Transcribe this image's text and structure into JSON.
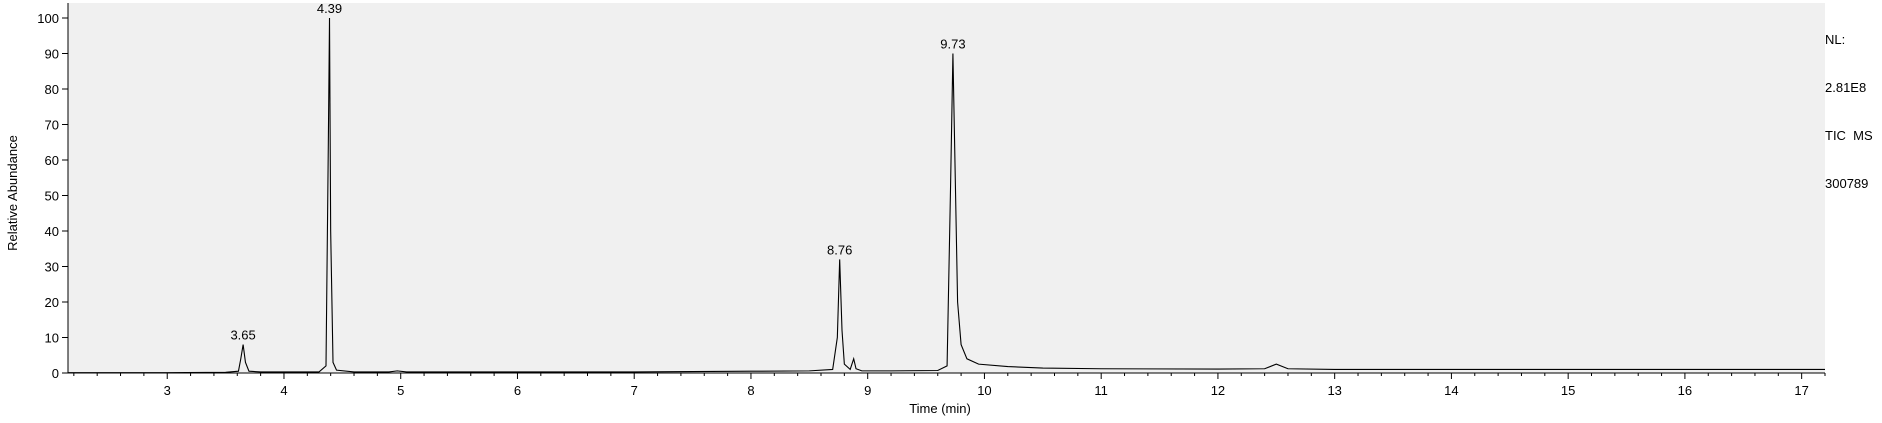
{
  "chart_data": {
    "type": "line",
    "title": "",
    "xlabel": "Time (min)",
    "ylabel": "Relative Abundance",
    "xlim": [
      2.15,
      17.2
    ],
    "ylim": [
      0,
      100
    ],
    "x_ticks": [
      3,
      4,
      5,
      6,
      7,
      8,
      9,
      10,
      11,
      12,
      13,
      14,
      15,
      16,
      17
    ],
    "y_ticks": [
      0,
      10,
      20,
      30,
      40,
      50,
      60,
      70,
      80,
      90,
      100
    ],
    "grid": false,
    "legend": "none",
    "colors": {
      "trace": "#000000",
      "plot_background": "#f0f0f0",
      "axis": "#000000"
    },
    "info_block": [
      "NL:",
      "2.81E8",
      "TIC  MS",
      "300789"
    ],
    "series": [
      {
        "x": [
          2.15,
          3.0,
          3.5,
          3.61,
          3.63,
          3.65,
          3.67,
          3.7,
          3.8,
          4.0,
          4.3,
          4.36,
          4.38,
          4.39,
          4.4,
          4.42,
          4.45,
          4.6,
          4.9,
          4.97,
          5.05,
          5.5,
          6.0,
          6.5,
          7.0,
          7.5,
          8.0,
          8.5,
          8.7,
          8.74,
          8.76,
          8.78,
          8.8,
          8.85,
          8.88,
          8.9,
          8.95,
          9.2,
          9.6,
          9.68,
          9.71,
          9.73,
          9.75,
          9.77,
          9.8,
          9.85,
          9.95,
          10.2,
          10.5,
          11.0,
          12.0,
          12.4,
          12.5,
          12.6,
          13.0,
          14.0,
          15.0,
          16.0,
          17.2
        ],
        "y": [
          0.1,
          0.1,
          0.2,
          0.5,
          4.0,
          8.0,
          3.0,
          0.5,
          0.3,
          0.3,
          0.3,
          2.0,
          65.0,
          100.0,
          40.0,
          3.0,
          0.8,
          0.3,
          0.3,
          0.6,
          0.3,
          0.3,
          0.3,
          0.3,
          0.3,
          0.4,
          0.5,
          0.6,
          1.0,
          10.0,
          32.0,
          12.0,
          2.5,
          1.0,
          4.0,
          1.2,
          0.6,
          0.6,
          0.7,
          2.0,
          53.0,
          90.0,
          55.0,
          20.0,
          8.0,
          4.0,
          2.5,
          1.8,
          1.4,
          1.2,
          1.1,
          1.2,
          2.5,
          1.2,
          1.0,
          1.0,
          1.0,
          1.0,
          1.0
        ]
      }
    ],
    "annotations": [
      {
        "x": 3.65,
        "y": 8.0,
        "label": "3.65"
      },
      {
        "x": 4.39,
        "y": 100.0,
        "label": "4.39"
      },
      {
        "x": 8.76,
        "y": 32.0,
        "label": "8.76"
      },
      {
        "x": 9.73,
        "y": 90.0,
        "label": "9.73"
      }
    ]
  }
}
